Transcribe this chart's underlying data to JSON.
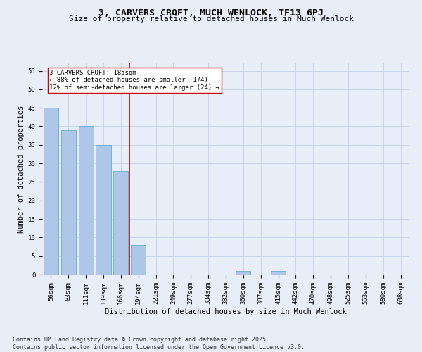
{
  "title": "3, CARVERS CROFT, MUCH WENLOCK, TF13 6PJ",
  "subtitle": "Size of property relative to detached houses in Much Wenlock",
  "xlabel": "Distribution of detached houses by size in Much Wenlock",
  "ylabel": "Number of detached properties",
  "categories": [
    "56sqm",
    "83sqm",
    "111sqm",
    "139sqm",
    "166sqm",
    "194sqm",
    "221sqm",
    "249sqm",
    "277sqm",
    "304sqm",
    "332sqm",
    "360sqm",
    "387sqm",
    "415sqm",
    "442sqm",
    "470sqm",
    "498sqm",
    "525sqm",
    "553sqm",
    "580sqm",
    "608sqm"
  ],
  "values": [
    45,
    39,
    40,
    35,
    28,
    8,
    0,
    0,
    0,
    0,
    0,
    1,
    0,
    1,
    0,
    0,
    0,
    0,
    0,
    0,
    0
  ],
  "bar_color": "#aec6e8",
  "bar_edge_color": "#6aaad4",
  "background_color": "#e8eef8",
  "grid_color": "#c8d4e8",
  "red_line_x": 4.5,
  "annotation_text": "3 CARVERS CROFT: 185sqm\n← 88% of detached houses are smaller (174)\n12% of semi-detached houses are larger (24) →",
  "annotation_box_color": "#ffffff",
  "annotation_box_edge_color": "#cc0000",
  "red_line_color": "#cc0000",
  "ylim": [
    0,
    57
  ],
  "yticks": [
    0,
    5,
    10,
    15,
    20,
    25,
    30,
    35,
    40,
    45,
    50,
    55
  ],
  "footnote": "Contains HM Land Registry data © Crown copyright and database right 2025.\nContains public sector information licensed under the Open Government Licence v3.0.",
  "title_fontsize": 9.5,
  "subtitle_fontsize": 8,
  "label_fontsize": 7.5,
  "tick_fontsize": 6.5,
  "annotation_fontsize": 6.5,
  "footnote_fontsize": 6
}
